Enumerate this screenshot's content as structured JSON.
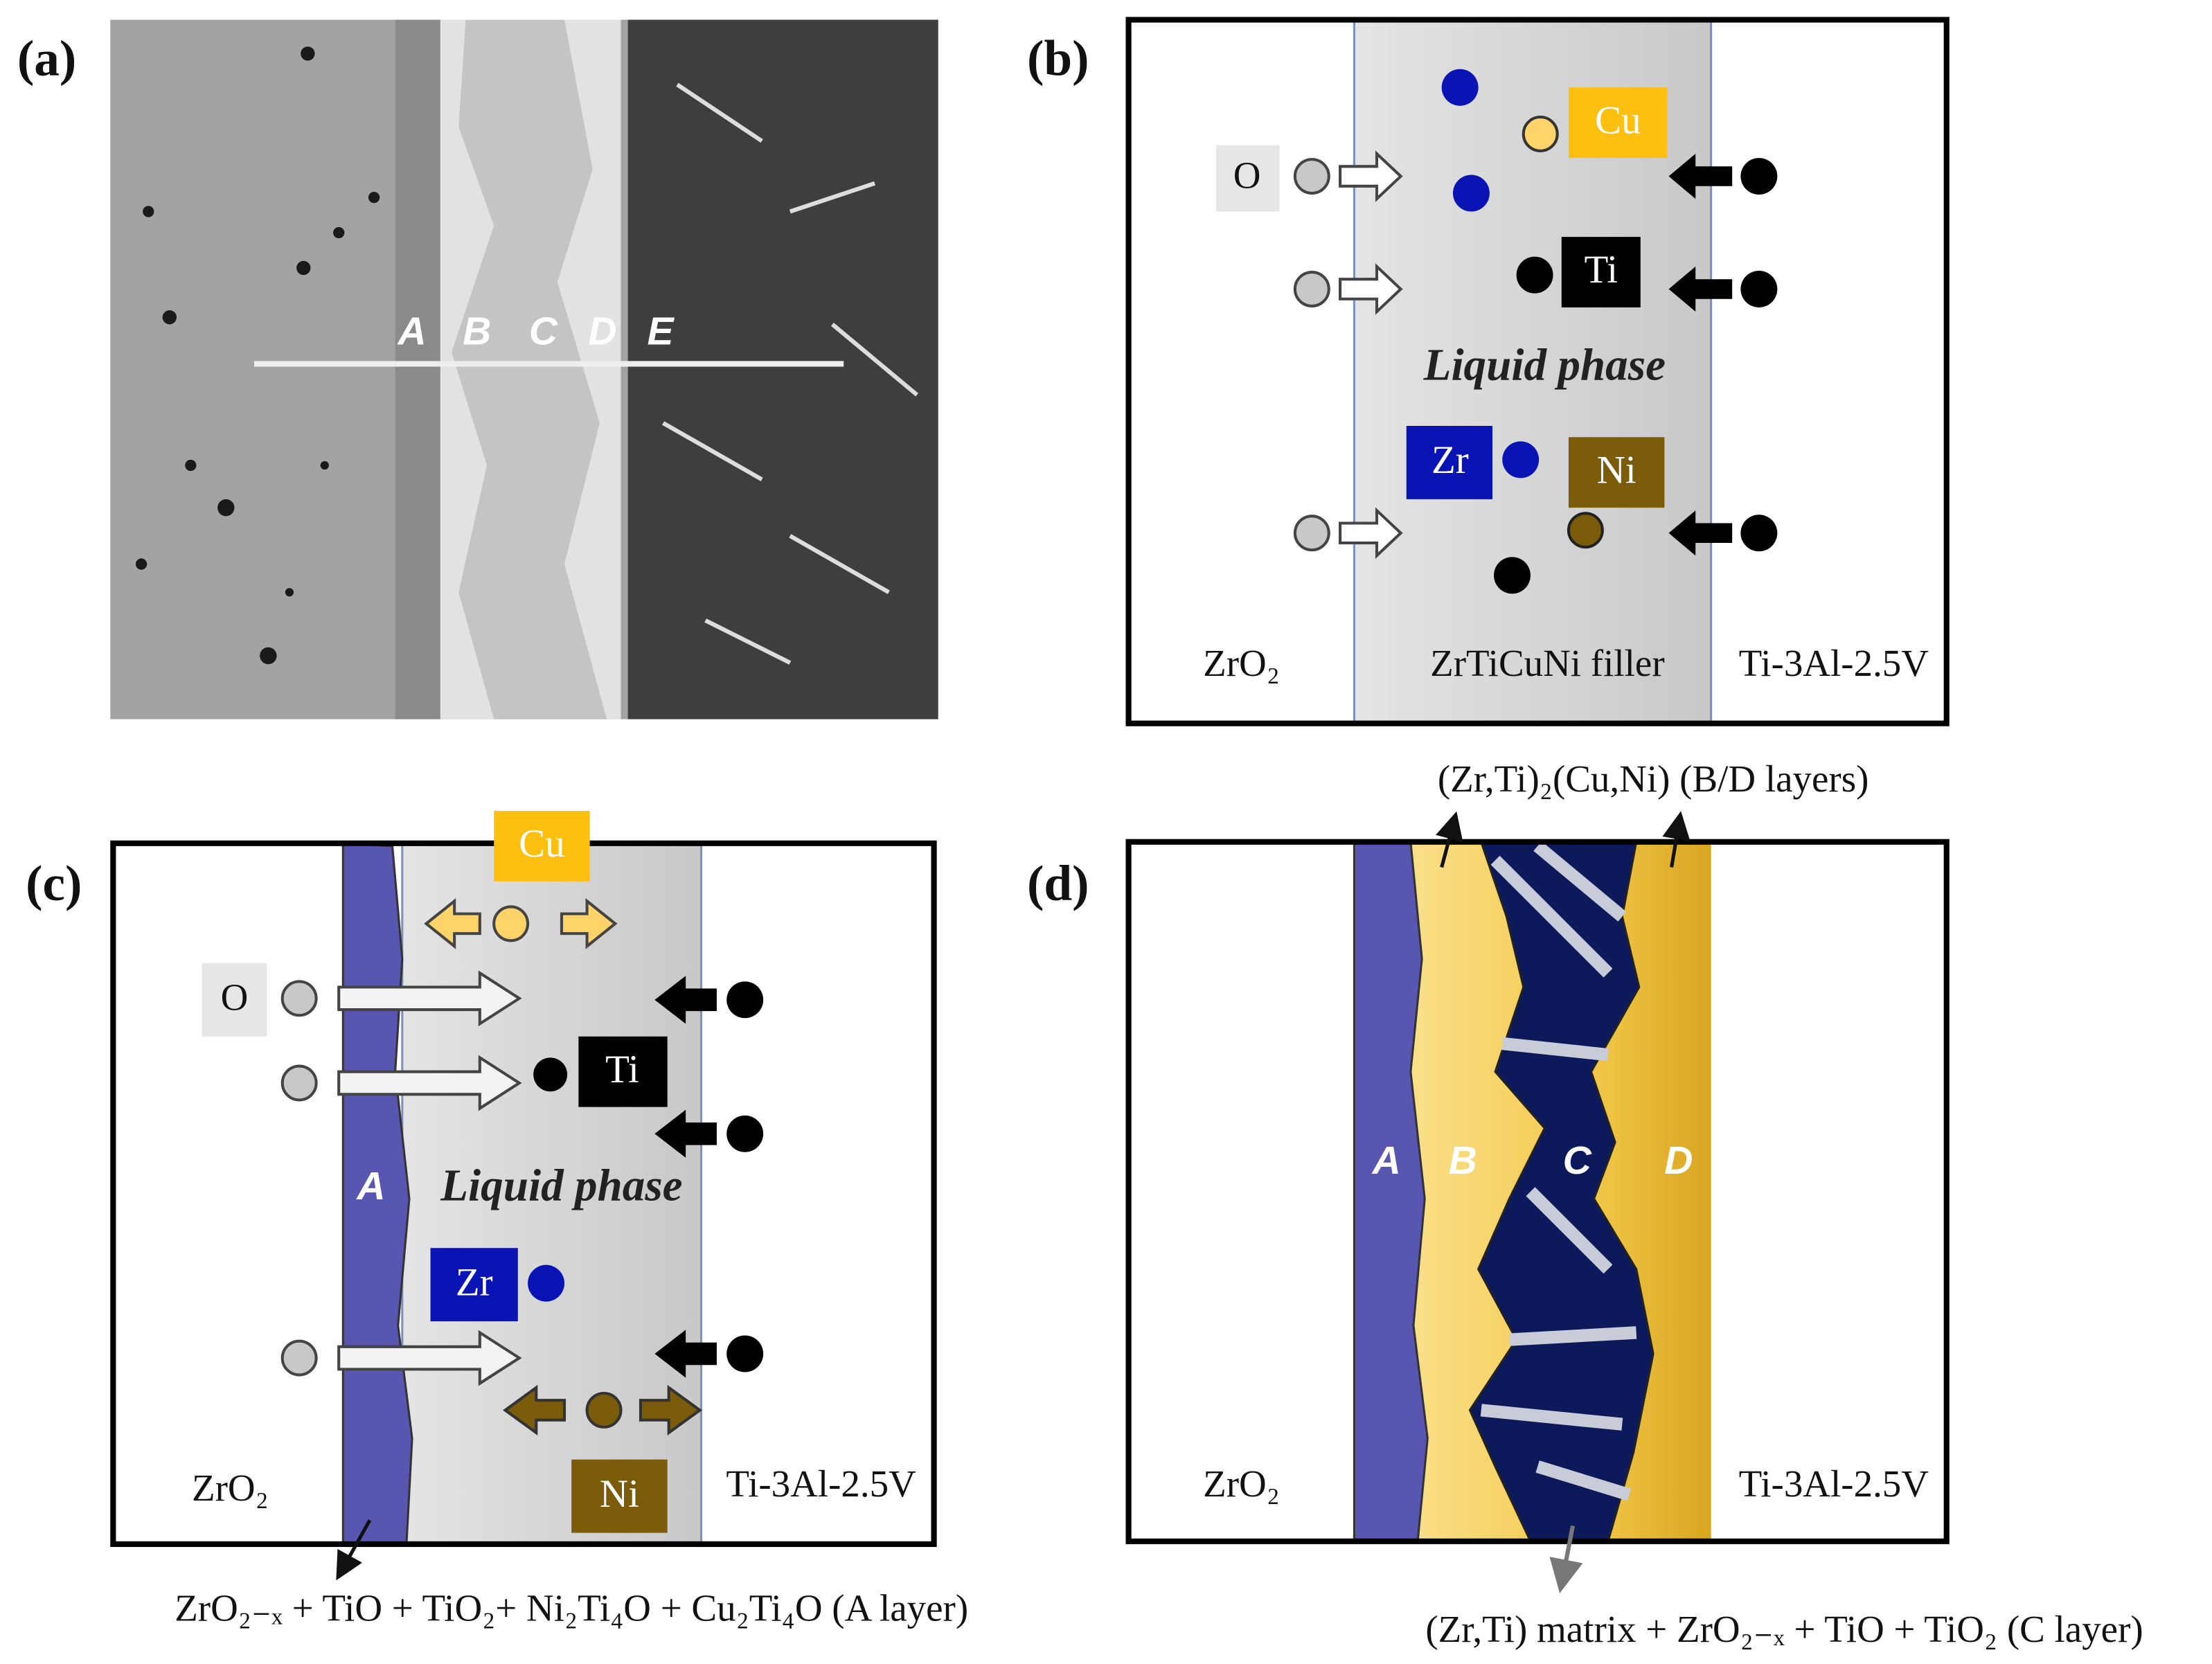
{
  "panels": [
    {
      "label": "(a)",
      "layer_labels": [
        "A",
        "B",
        "C",
        "D",
        "E"
      ]
    },
    {
      "label": "(b)",
      "regions": [
        "ZrO₂",
        "ZrTiCuNi filler",
        "Ti-3Al-2.5V"
      ],
      "phase": "Liquid phase",
      "elements": [
        "O",
        "Cu",
        "Ti",
        "Zr",
        "Ni"
      ]
    },
    {
      "label": "(c)",
      "regions": [
        "ZrO₂",
        "Ti-3Al-2.5V"
      ],
      "layer": "A",
      "phase": "Liquid phase",
      "elements": [
        "O",
        "Cu",
        "Ti",
        "Zr",
        "Ni"
      ],
      "annotation": "ZrO₂₋ₓ + TiO + TiO₂+ Ni₂Ti₄O + Cu₂Ti₄O (A layer)"
    },
    {
      "label": "(d)",
      "regions": [
        "ZrO₂",
        "Ti-3Al-2.5V"
      ],
      "layers": [
        "A",
        "B",
        "C",
        "D"
      ],
      "annotations": [
        "(Zr,Ti)₂(Cu,Ni) (B/D layers)",
        "(Zr,Ti) matrix + ZrO₂₋ₓ + TiO + TiO₂ (C layer)"
      ]
    }
  ]
}
